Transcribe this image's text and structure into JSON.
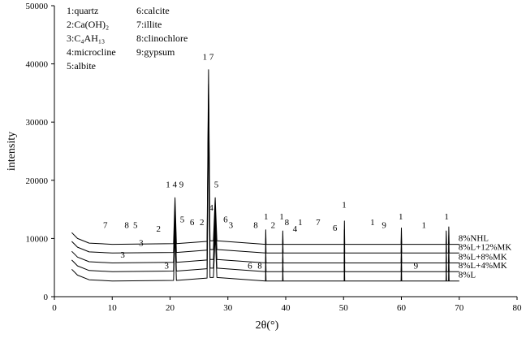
{
  "chart_data": {
    "type": "line",
    "xlabel": "2θ(°)",
    "ylabel": "intensity",
    "xlim": [
      0,
      80
    ],
    "ylim": [
      0,
      50000
    ],
    "x_ticks": [
      0,
      10,
      20,
      30,
      40,
      50,
      60,
      70,
      80
    ],
    "y_ticks": [
      0,
      10000,
      20000,
      30000,
      40000,
      50000
    ],
    "grid": false,
    "legend": {
      "position": "top-left",
      "columns": [
        [
          "1:quartz",
          "2:Ca(OH)₂",
          "3:C₄AH₁₃",
          "4:microcline",
          "5:albite"
        ],
        [
          "6:calcite",
          "7:illite",
          "8:clinochlore",
          "9:gypsum"
        ]
      ]
    },
    "series": [
      {
        "name": "8%NHL",
        "baseline": 9000,
        "points": [
          [
            3,
            11000
          ],
          [
            4,
            10000
          ],
          [
            6,
            9200
          ],
          [
            10,
            9000
          ],
          [
            20.6,
            9100
          ],
          [
            20.85,
            17000
          ],
          [
            21.1,
            9100
          ],
          [
            26.4,
            9500
          ],
          [
            26.65,
            39000
          ],
          [
            26.9,
            9600
          ],
          [
            27.5,
            9600
          ],
          [
            27.8,
            17000
          ],
          [
            28.1,
            9600
          ],
          [
            36.5,
            9000
          ],
          [
            36.55,
            11500
          ],
          [
            36.6,
            9000
          ],
          [
            39.45,
            9000
          ],
          [
            39.5,
            11300
          ],
          [
            39.55,
            9000
          ],
          [
            50.1,
            9000
          ],
          [
            50.15,
            13000
          ],
          [
            50.2,
            9000
          ],
          [
            59.95,
            9000
          ],
          [
            60,
            11800
          ],
          [
            60.05,
            9000
          ],
          [
            67.7,
            9000
          ],
          [
            67.75,
            11300
          ],
          [
            67.8,
            9000
          ],
          [
            68.15,
            9000
          ],
          [
            68.2,
            12000
          ],
          [
            68.25,
            9000
          ],
          [
            70,
            9000
          ]
        ]
      },
      {
        "name": "8%L+12%MK",
        "baseline": 7500,
        "points": [
          [
            3,
            9500
          ],
          [
            4,
            8500
          ],
          [
            6,
            7700
          ],
          [
            10,
            7500
          ],
          [
            20.6,
            7600
          ],
          [
            20.85,
            15500
          ],
          [
            21.1,
            7600
          ],
          [
            26.4,
            8000
          ],
          [
            26.65,
            36500
          ],
          [
            26.9,
            8100
          ],
          [
            27.5,
            8100
          ],
          [
            27.8,
            15500
          ],
          [
            28.1,
            8100
          ],
          [
            36.5,
            7500
          ],
          [
            36.55,
            10000
          ],
          [
            36.6,
            7500
          ],
          [
            39.45,
            7500
          ],
          [
            39.5,
            9800
          ],
          [
            39.55,
            7500
          ],
          [
            50.1,
            7500
          ],
          [
            50.15,
            11500
          ],
          [
            50.2,
            7500
          ],
          [
            59.95,
            7500
          ],
          [
            60,
            10300
          ],
          [
            60.05,
            7500
          ],
          [
            67.7,
            7500
          ],
          [
            67.75,
            9800
          ],
          [
            67.8,
            7500
          ],
          [
            68.15,
            7500
          ],
          [
            68.2,
            10500
          ],
          [
            68.25,
            7500
          ],
          [
            70,
            7500
          ]
        ]
      },
      {
        "name": "8%L+8%MK",
        "baseline": 5800,
        "points": [
          [
            3,
            7800
          ],
          [
            4,
            6800
          ],
          [
            6,
            6000
          ],
          [
            10,
            5800
          ],
          [
            20.6,
            5900
          ],
          [
            20.85,
            13800
          ],
          [
            21.1,
            5900
          ],
          [
            26.4,
            6300
          ],
          [
            26.65,
            34800
          ],
          [
            26.9,
            6400
          ],
          [
            27.5,
            6400
          ],
          [
            27.8,
            13800
          ],
          [
            28.1,
            6400
          ],
          [
            36.5,
            5800
          ],
          [
            36.55,
            8300
          ],
          [
            36.6,
            5800
          ],
          [
            39.45,
            5800
          ],
          [
            39.5,
            8100
          ],
          [
            39.55,
            5800
          ],
          [
            50.1,
            5800
          ],
          [
            50.15,
            9800
          ],
          [
            50.2,
            5800
          ],
          [
            59.95,
            5800
          ],
          [
            60,
            8600
          ],
          [
            60.05,
            5800
          ],
          [
            67.7,
            5800
          ],
          [
            67.75,
            8100
          ],
          [
            67.8,
            5800
          ],
          [
            68.15,
            5800
          ],
          [
            68.2,
            8800
          ],
          [
            68.25,
            5800
          ],
          [
            70,
            5800
          ]
        ]
      },
      {
        "name": "8%L+4%MK",
        "baseline": 4300,
        "points": [
          [
            3,
            6300
          ],
          [
            4,
            5300
          ],
          [
            6,
            4500
          ],
          [
            10,
            4300
          ],
          [
            20.6,
            4400
          ],
          [
            20.85,
            12300
          ],
          [
            21.1,
            4400
          ],
          [
            26.4,
            4800
          ],
          [
            26.65,
            33300
          ],
          [
            26.9,
            4900
          ],
          [
            27.5,
            4900
          ],
          [
            27.8,
            12300
          ],
          [
            28.1,
            4900
          ],
          [
            36.5,
            4300
          ],
          [
            36.55,
            6800
          ],
          [
            36.6,
            4300
          ],
          [
            39.45,
            4300
          ],
          [
            39.5,
            6600
          ],
          [
            39.55,
            4300
          ],
          [
            50.1,
            4300
          ],
          [
            50.15,
            8300
          ],
          [
            50.2,
            4300
          ],
          [
            59.95,
            4300
          ],
          [
            60,
            7100
          ],
          [
            60.05,
            4300
          ],
          [
            67.7,
            4300
          ],
          [
            67.75,
            6600
          ],
          [
            67.8,
            4300
          ],
          [
            68.15,
            4300
          ],
          [
            68.2,
            7300
          ],
          [
            68.25,
            4300
          ],
          [
            70,
            4300
          ]
        ]
      },
      {
        "name": "8%L",
        "baseline": 2700,
        "points": [
          [
            3,
            4700
          ],
          [
            4,
            3700
          ],
          [
            6,
            2900
          ],
          [
            10,
            2700
          ],
          [
            20.6,
            2800
          ],
          [
            20.85,
            10700
          ],
          [
            21.1,
            2800
          ],
          [
            26.4,
            3200
          ],
          [
            26.65,
            31700
          ],
          [
            26.9,
            3300
          ],
          [
            27.5,
            3300
          ],
          [
            27.8,
            10700
          ],
          [
            28.1,
            3300
          ],
          [
            36.5,
            2700
          ],
          [
            36.55,
            5200
          ],
          [
            36.6,
            2700
          ],
          [
            39.45,
            2700
          ],
          [
            39.5,
            5000
          ],
          [
            39.55,
            2700
          ],
          [
            50.1,
            2700
          ],
          [
            50.15,
            6700
          ],
          [
            50.2,
            2700
          ],
          [
            59.95,
            2700
          ],
          [
            60,
            5500
          ],
          [
            60.05,
            2700
          ],
          [
            67.7,
            2700
          ],
          [
            67.75,
            5000
          ],
          [
            67.8,
            2700
          ],
          [
            68.15,
            2700
          ],
          [
            68.2,
            5700
          ],
          [
            68.25,
            2700
          ],
          [
            70,
            2700
          ]
        ]
      }
    ],
    "peak_annotations": [
      {
        "text": "7",
        "x": 8.8,
        "y": 11800
      },
      {
        "text": "8",
        "x": 12.5,
        "y": 11800
      },
      {
        "text": "5",
        "x": 14,
        "y": 11800
      },
      {
        "text": "2",
        "x": 18,
        "y": 11200
      },
      {
        "text": "5",
        "x": 22.1,
        "y": 12800
      },
      {
        "text": "6",
        "x": 23.8,
        "y": 12300
      },
      {
        "text": "2",
        "x": 25.5,
        "y": 12300
      },
      {
        "text": "4",
        "x": 27.1,
        "y": 14800
      },
      {
        "text": "5",
        "x": 28,
        "y": 18800
      },
      {
        "text": "6",
        "x": 29.6,
        "y": 12800
      },
      {
        "text": "3",
        "x": 30.5,
        "y": 11800
      },
      {
        "text": "8",
        "x": 34.8,
        "y": 11800
      },
      {
        "text": "1",
        "x": 36.6,
        "y": 13300
      },
      {
        "text": "2",
        "x": 37.8,
        "y": 11800
      },
      {
        "text": "1",
        "x": 39.3,
        "y": 13300
      },
      {
        "text": "8",
        "x": 40.2,
        "y": 12300
      },
      {
        "text": "4",
        "x": 41.6,
        "y": 11200
      },
      {
        "text": "1",
        "x": 42.5,
        "y": 12300
      },
      {
        "text": "7",
        "x": 45.6,
        "y": 12300
      },
      {
        "text": "6",
        "x": 48.5,
        "y": 11300
      },
      {
        "text": "1",
        "x": 50.1,
        "y": 15300
      },
      {
        "text": "1",
        "x": 55,
        "y": 12300
      },
      {
        "text": "9",
        "x": 57,
        "y": 11800
      },
      {
        "text": "1",
        "x": 59.9,
        "y": 13300
      },
      {
        "text": "1",
        "x": 63.9,
        "y": 11800
      },
      {
        "text": "1",
        "x": 67.8,
        "y": 13300
      },
      {
        "text": "1 4 9",
        "x": 20.8,
        "y": 18800
      },
      {
        "text": "1 7",
        "x": 26.6,
        "y": 40700
      },
      {
        "text": "3",
        "x": 15,
        "y": 8700
      },
      {
        "text": "3",
        "x": 11.8,
        "y": 6700
      },
      {
        "text": "3",
        "x": 19.4,
        "y": 4800
      },
      {
        "text": "6",
        "x": 33.8,
        "y": 4800
      },
      {
        "text": "8",
        "x": 35.5,
        "y": 4800
      },
      {
        "text": "9",
        "x": 62.5,
        "y": 4800
      }
    ]
  }
}
